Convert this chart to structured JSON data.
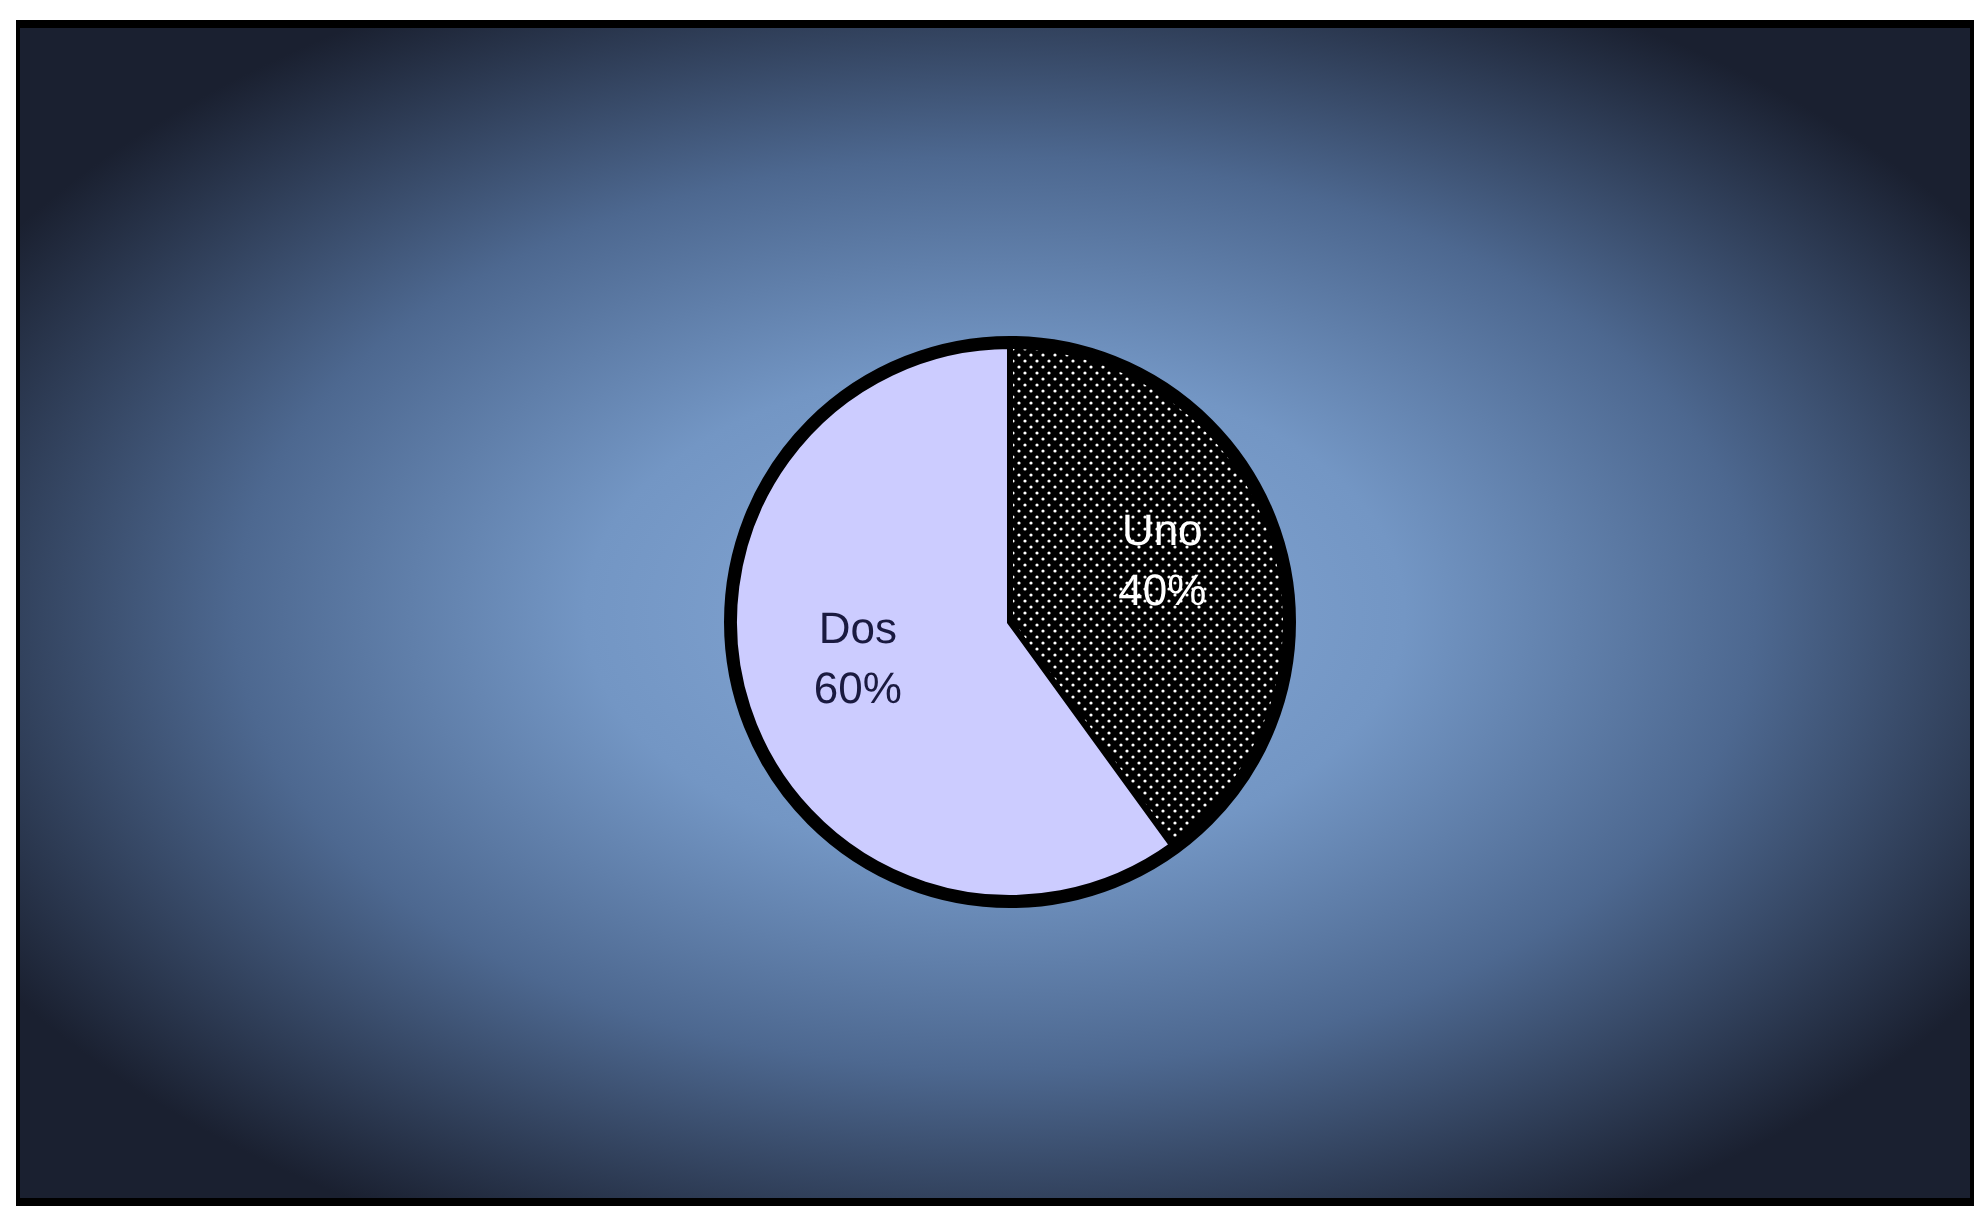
{
  "chart_data": {
    "type": "pie",
    "categories": [
      "Uno",
      "Dos"
    ],
    "values": [
      40,
      60
    ],
    "value_labels": [
      "40%",
      "60%"
    ],
    "colors": [
      "#000000",
      "#ccccff"
    ],
    "legend": false
  }
}
